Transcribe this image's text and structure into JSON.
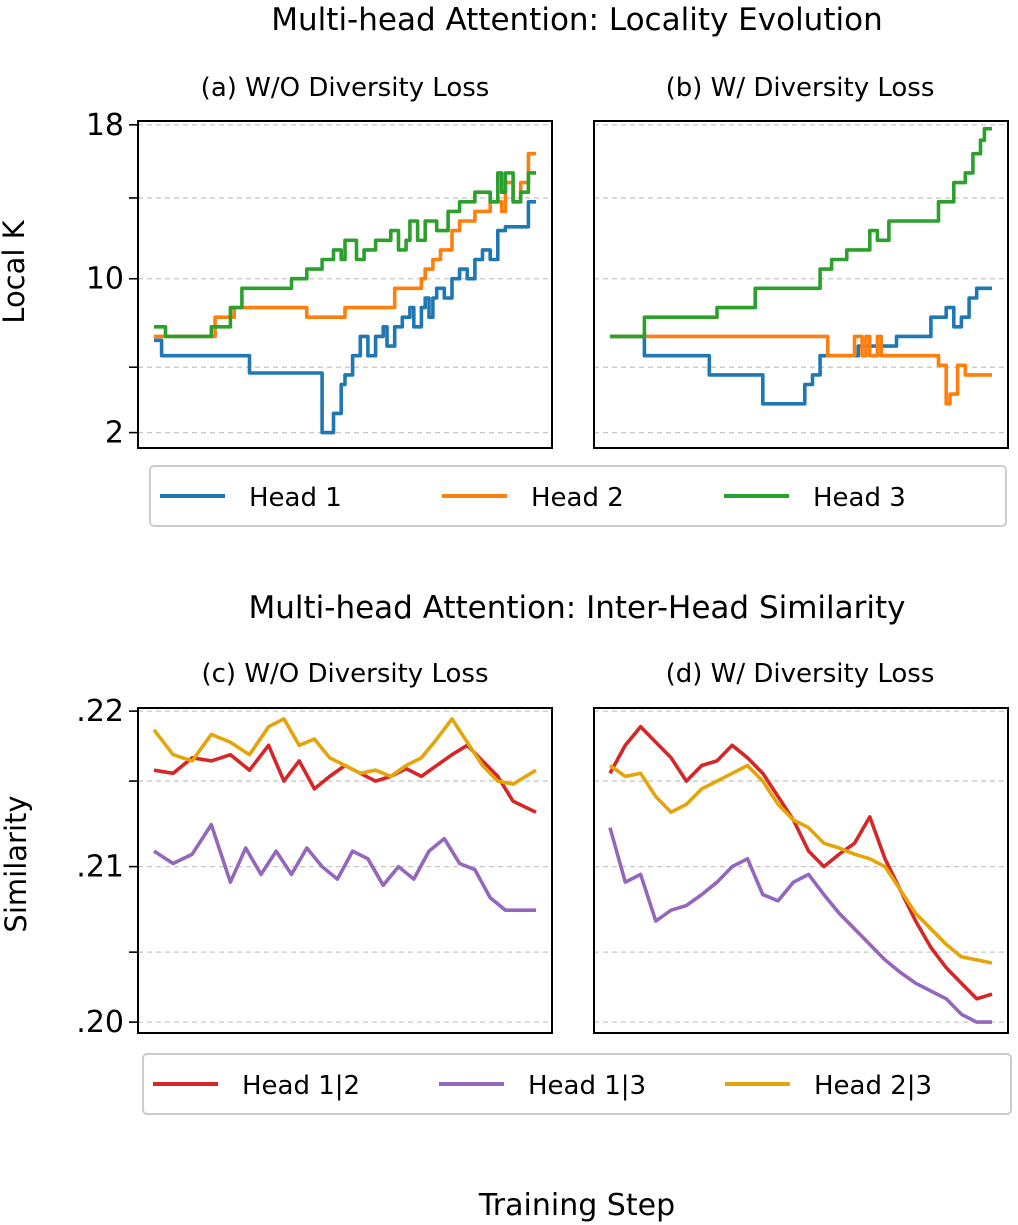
{
  "chart_data": {
    "type": "line",
    "xlabel": "Training Step",
    "rows": [
      {
        "title": "Multi-head Attention: Locality Evolution",
        "ylabel": "Local K",
        "ylim": [
          1.2,
          18.2
        ],
        "ticks": [
          {
            "value": 2,
            "label": "2"
          },
          {
            "value": 5.4,
            "label": ""
          },
          {
            "value": 10,
            "label": "10"
          },
          {
            "value": 14.2,
            "label": ""
          },
          {
            "value": 18,
            "label": "18"
          }
        ],
        "legend": [
          {
            "name": "Head 1",
            "color": "#1f77b4"
          },
          {
            "name": "Head 2",
            "color": "#ff7f0e"
          },
          {
            "name": "Head 3",
            "color": "#2ca02c"
          }
        ],
        "panels": [
          {
            "title": "(a) W/O Diversity Loss",
            "series": [
              {
                "name": "Head 1",
                "color": "#1f77b4",
                "step": true,
                "x": [
                  0,
                  0.02,
                  0.2,
                  0.25,
                  0.43,
                  0.44,
                  0.47,
                  0.48,
                  0.49,
                  0.5,
                  0.52,
                  0.54,
                  0.56,
                  0.58,
                  0.6,
                  0.61,
                  0.63,
                  0.65,
                  0.67,
                  0.68,
                  0.7,
                  0.71,
                  0.72,
                  0.73,
                  0.74,
                  0.76,
                  0.78,
                  0.8,
                  0.82,
                  0.84,
                  0.86,
                  0.88,
                  0.9,
                  0.92,
                  0.96,
                  0.98,
                  1.0
                ],
                "y": [
                  6.8,
                  6.0,
                  6.0,
                  5.1,
                  5.1,
                  2.0,
                  3.0,
                  3.0,
                  4.5,
                  5.0,
                  6.0,
                  7.0,
                  6.0,
                  7.0,
                  7.5,
                  6.5,
                  7.5,
                  8.0,
                  8.5,
                  7.5,
                  8.5,
                  9.0,
                  8.0,
                  9.0,
                  9.5,
                  9.0,
                  10.0,
                  10.5,
                  10.0,
                  11.0,
                  11.5,
                  11.0,
                  12.5,
                  12.7,
                  12.7,
                  14.0,
                  14.0
                ]
              },
              {
                "name": "Head 2",
                "color": "#ff7f0e",
                "step": true,
                "x": [
                  0,
                  0.1,
                  0.16,
                  0.21,
                  0.38,
                  0.4,
                  0.48,
                  0.5,
                  0.57,
                  0.63,
                  0.67,
                  0.7,
                  0.71,
                  0.73,
                  0.75,
                  0.78,
                  0.8,
                  0.84,
                  0.88,
                  0.91,
                  0.92,
                  0.94,
                  0.96,
                  0.98,
                  1.0
                ],
                "y": [
                  7.0,
                  7.0,
                  8.0,
                  8.5,
                  8.5,
                  8.0,
                  8.0,
                  8.5,
                  8.5,
                  9.5,
                  9.5,
                  10.0,
                  10.5,
                  11.0,
                  11.5,
                  12.5,
                  13.0,
                  13.5,
                  14.0,
                  13.5,
                  15.0,
                  14.0,
                  15.0,
                  16.5,
                  16.5
                ]
              },
              {
                "name": "Head 3",
                "color": "#2ca02c",
                "step": true,
                "x": [
                  0,
                  0.03,
                  0.15,
                  0.2,
                  0.23,
                  0.36,
                  0.4,
                  0.44,
                  0.47,
                  0.49,
                  0.5,
                  0.53,
                  0.55,
                  0.58,
                  0.62,
                  0.64,
                  0.66,
                  0.67,
                  0.69,
                  0.71,
                  0.74,
                  0.77,
                  0.8,
                  0.84,
                  0.88,
                  0.9,
                  0.91,
                  0.92,
                  0.94,
                  0.96,
                  0.98,
                  1.0
                ],
                "y": [
                  7.5,
                  7.0,
                  7.5,
                  8.5,
                  9.5,
                  10.0,
                  10.5,
                  11.0,
                  11.5,
                  11.0,
                  12.0,
                  11.0,
                  11.5,
                  12.0,
                  12.5,
                  11.5,
                  12.0,
                  13.0,
                  12.0,
                  13.0,
                  12.5,
                  13.5,
                  14.0,
                  14.5,
                  14.0,
                  15.5,
                  14.5,
                  15.5,
                  14.0,
                  14.5,
                  15.5,
                  15.5
                ]
              }
            ]
          },
          {
            "title": "(b) W/ Diversity Loss",
            "series": [
              {
                "name": "Head 1",
                "color": "#1f77b4",
                "step": true,
                "x": [
                  0,
                  0.09,
                  0.26,
                  0.4,
                  0.46,
                  0.51,
                  0.53,
                  0.55,
                  0.6,
                  0.65,
                  0.7,
                  0.75,
                  0.81,
                  0.84,
                  0.88,
                  0.9,
                  0.92,
                  0.94,
                  0.96,
                  1.0
                ],
                "y": [
                  7.0,
                  6.0,
                  5.0,
                  3.5,
                  3.5,
                  4.5,
                  5.0,
                  6.0,
                  6.0,
                  6.5,
                  6.5,
                  7.0,
                  7.0,
                  8.0,
                  8.5,
                  7.5,
                  8.0,
                  9.0,
                  9.5,
                  9.5
                ]
              },
              {
                "name": "Head 2",
                "color": "#ff7f0e",
                "step": true,
                "x": [
                  0,
                  0.55,
                  0.57,
                  0.62,
                  0.63,
                  0.64,
                  0.66,
                  0.67,
                  0.68,
                  0.7,
                  0.71,
                  0.72,
                  0.74,
                  0.82,
                  0.86,
                  0.88,
                  0.89,
                  0.91,
                  0.93,
                  0.96,
                  1.0
                ],
                "y": [
                  7.0,
                  7.0,
                  6.0,
                  6.0,
                  6.0,
                  7.0,
                  6.0,
                  7.0,
                  6.0,
                  7.0,
                  6.0,
                  6.0,
                  6.0,
                  6.0,
                  5.5,
                  3.5,
                  4.0,
                  5.5,
                  5.0,
                  5.0,
                  5.0
                ]
              },
              {
                "name": "Head 3",
                "color": "#2ca02c",
                "step": true,
                "x": [
                  0,
                  0.09,
                  0.28,
                  0.38,
                  0.55,
                  0.58,
                  0.62,
                  0.68,
                  0.7,
                  0.73,
                  0.78,
                  0.86,
                  0.9,
                  0.93,
                  0.95,
                  0.97,
                  0.98,
                  1.0
                ],
                "y": [
                  7.0,
                  8.0,
                  8.5,
                  9.5,
                  10.5,
                  11.0,
                  11.5,
                  12.5,
                  12.0,
                  13.0,
                  13.0,
                  14.0,
                  15.0,
                  15.5,
                  16.5,
                  17.2,
                  17.8,
                  17.8
                ]
              }
            ]
          }
        ]
      },
      {
        "title": "Multi-head Attention: Inter-Head Similarity",
        "ylabel": "Similarity",
        "ylim": [
          0.1993,
          0.2202
        ],
        "ticks": [
          {
            "value": 0.2,
            "label": ".20"
          },
          {
            "value": 0.2045,
            "label": ""
          },
          {
            "value": 0.21,
            "label": ".21"
          },
          {
            "value": 0.2155,
            "label": ""
          },
          {
            "value": 0.22,
            "label": ".22"
          }
        ],
        "legend": [
          {
            "name": "Head 1|2",
            "color": "#d62728"
          },
          {
            "name": "Head 1|3",
            "color": "#9467bd"
          },
          {
            "name": "Head 2|3",
            "color": "#e5a50a"
          }
        ],
        "panels": [
          {
            "title": "(c) W/O Diversity Loss",
            "series": [
              {
                "name": "Head 1|2",
                "color": "#d62728",
                "step": false,
                "x": [
                  0,
                  0.05,
                  0.1,
                  0.15,
                  0.2,
                  0.25,
                  0.3,
                  0.34,
                  0.38,
                  0.42,
                  0.46,
                  0.5,
                  0.54,
                  0.58,
                  0.62,
                  0.66,
                  0.7,
                  0.74,
                  0.78,
                  0.82,
                  0.86,
                  0.9,
                  0.94,
                  1.0
                ],
                "y": [
                  0.2162,
                  0.216,
                  0.217,
                  0.2168,
                  0.2172,
                  0.2162,
                  0.2178,
                  0.2155,
                  0.2168,
                  0.215,
                  0.2158,
                  0.2165,
                  0.216,
                  0.2155,
                  0.2158,
                  0.2163,
                  0.2158,
                  0.2165,
                  0.2172,
                  0.2178,
                  0.2168,
                  0.2158,
                  0.2142,
                  0.2135
                ]
              },
              {
                "name": "Head 1|3",
                "color": "#9467bd",
                "step": false,
                "x": [
                  0,
                  0.05,
                  0.1,
                  0.15,
                  0.2,
                  0.24,
                  0.28,
                  0.32,
                  0.36,
                  0.4,
                  0.44,
                  0.48,
                  0.52,
                  0.56,
                  0.6,
                  0.64,
                  0.68,
                  0.72,
                  0.76,
                  0.8,
                  0.84,
                  0.88,
                  0.92,
                  1.0
                ],
                "y": [
                  0.211,
                  0.2102,
                  0.2108,
                  0.2127,
                  0.209,
                  0.2112,
                  0.2095,
                  0.211,
                  0.2095,
                  0.2112,
                  0.21,
                  0.2092,
                  0.211,
                  0.2105,
                  0.2088,
                  0.21,
                  0.2092,
                  0.211,
                  0.2118,
                  0.2102,
                  0.2098,
                  0.208,
                  0.2072,
                  0.2072
                ]
              },
              {
                "name": "Head 2|3",
                "color": "#e5a50a",
                "step": false,
                "x": [
                  0,
                  0.05,
                  0.1,
                  0.15,
                  0.2,
                  0.25,
                  0.3,
                  0.34,
                  0.38,
                  0.42,
                  0.46,
                  0.5,
                  0.54,
                  0.58,
                  0.62,
                  0.66,
                  0.7,
                  0.74,
                  0.78,
                  0.82,
                  0.86,
                  0.9,
                  0.94,
                  1.0
                ],
                "y": [
                  0.2188,
                  0.2172,
                  0.2168,
                  0.2185,
                  0.218,
                  0.2172,
                  0.219,
                  0.2195,
                  0.2178,
                  0.2182,
                  0.217,
                  0.2165,
                  0.216,
                  0.2162,
                  0.2158,
                  0.2165,
                  0.217,
                  0.2182,
                  0.2195,
                  0.218,
                  0.2165,
                  0.2155,
                  0.2153,
                  0.2162
                ]
              }
            ]
          },
          {
            "title": "(d) W/ Diversity Loss",
            "series": [
              {
                "name": "Head 1|2",
                "color": "#d62728",
                "step": false,
                "x": [
                  0,
                  0.04,
                  0.08,
                  0.12,
                  0.16,
                  0.2,
                  0.24,
                  0.28,
                  0.32,
                  0.36,
                  0.4,
                  0.44,
                  0.48,
                  0.52,
                  0.56,
                  0.6,
                  0.64,
                  0.68,
                  0.72,
                  0.76,
                  0.8,
                  0.84,
                  0.88,
                  0.92,
                  0.96,
                  1.0
                ],
                "y": [
                  0.216,
                  0.2178,
                  0.219,
                  0.218,
                  0.217,
                  0.2155,
                  0.2165,
                  0.2168,
                  0.2178,
                  0.217,
                  0.216,
                  0.2145,
                  0.213,
                  0.211,
                  0.21,
                  0.2108,
                  0.2115,
                  0.2132,
                  0.2105,
                  0.2085,
                  0.2065,
                  0.2048,
                  0.2035,
                  0.2025,
                  0.2015,
                  0.2018
                ]
              },
              {
                "name": "Head 1|3",
                "color": "#9467bd",
                "step": false,
                "x": [
                  0,
                  0.04,
                  0.08,
                  0.12,
                  0.16,
                  0.2,
                  0.24,
                  0.28,
                  0.32,
                  0.36,
                  0.4,
                  0.44,
                  0.48,
                  0.52,
                  0.56,
                  0.6,
                  0.64,
                  0.68,
                  0.72,
                  0.76,
                  0.8,
                  0.84,
                  0.88,
                  0.92,
                  0.96,
                  1.0
                ],
                "y": [
                  0.2125,
                  0.209,
                  0.2095,
                  0.2065,
                  0.2072,
                  0.2075,
                  0.2082,
                  0.209,
                  0.21,
                  0.2105,
                  0.2082,
                  0.2078,
                  0.209,
                  0.2095,
                  0.2082,
                  0.207,
                  0.206,
                  0.205,
                  0.204,
                  0.2032,
                  0.2025,
                  0.202,
                  0.2015,
                  0.2005,
                  0.2,
                  0.2
                ]
              },
              {
                "name": "Head 2|3",
                "color": "#e5a50a",
                "step": false,
                "x": [
                  0,
                  0.04,
                  0.08,
                  0.12,
                  0.16,
                  0.2,
                  0.24,
                  0.28,
                  0.32,
                  0.36,
                  0.4,
                  0.44,
                  0.48,
                  0.52,
                  0.56,
                  0.6,
                  0.64,
                  0.68,
                  0.72,
                  0.76,
                  0.8,
                  0.84,
                  0.88,
                  0.92,
                  0.96,
                  1.0
                ],
                "y": [
                  0.2165,
                  0.2158,
                  0.216,
                  0.2145,
                  0.2135,
                  0.214,
                  0.215,
                  0.2155,
                  0.216,
                  0.2165,
                  0.2155,
                  0.214,
                  0.213,
                  0.2125,
                  0.2115,
                  0.2112,
                  0.2108,
                  0.2105,
                  0.21,
                  0.2085,
                  0.207,
                  0.206,
                  0.205,
                  0.2042,
                  0.204,
                  0.2038
                ]
              }
            ]
          }
        ]
      }
    ]
  }
}
